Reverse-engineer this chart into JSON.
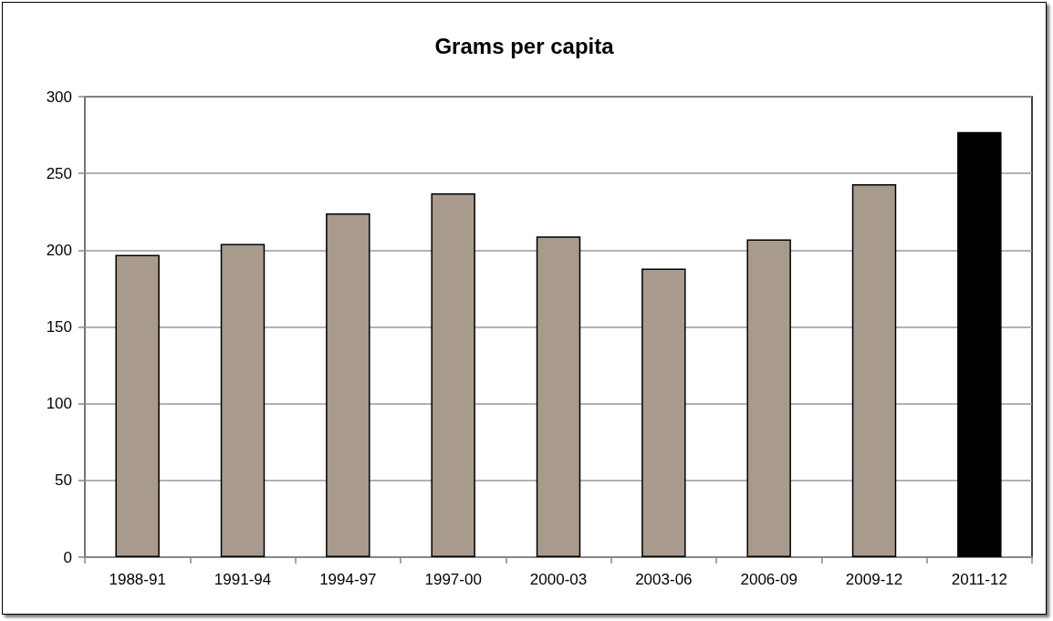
{
  "chart_data": {
    "type": "bar",
    "title": "Grams per capita",
    "categories": [
      "1988-91",
      "1991-94",
      "1994-97",
      "1997-00",
      "2000-03",
      "2003-06",
      "2006-09",
      "2009-12",
      "2011-12"
    ],
    "values": [
      197,
      204,
      224,
      237,
      209,
      188,
      207,
      243,
      277
    ],
    "colors": [
      "#a89a8c",
      "#a89a8c",
      "#a89a8c",
      "#a89a8c",
      "#a89a8c",
      "#a89a8c",
      "#a89a8c",
      "#a89a8c",
      "#000000"
    ],
    "ylim": [
      0,
      300
    ],
    "yticks": [
      0,
      50,
      100,
      150,
      200,
      250,
      300
    ],
    "grid": "y"
  }
}
